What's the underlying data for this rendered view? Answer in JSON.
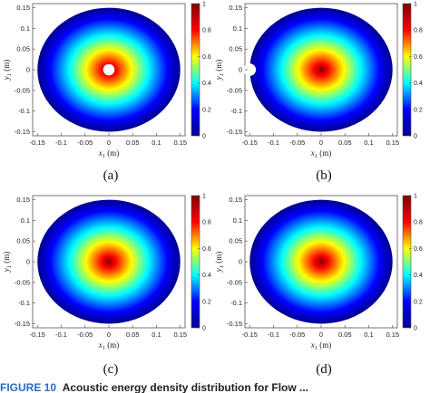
{
  "chart_data": [
    {
      "type": "heatmap",
      "panel_label": "(a)",
      "xlabel": "x",
      "xlabel_sub": "1",
      "xlabel_unit": "(m)",
      "ylabel": "y",
      "ylabel_sub": "1",
      "ylabel_unit": "(m)",
      "xlim": [
        -0.16,
        0.16
      ],
      "ylim": [
        -0.16,
        0.16
      ],
      "x_ticks": [
        "-0.15",
        "-0.1",
        "-0.05",
        "0",
        "0.05",
        "0.1",
        "0.15"
      ],
      "y_ticks": [
        "0.15",
        "0.1",
        "0.05",
        "0",
        "-0.05",
        "-0.1",
        "-0.15"
      ],
      "domain_radius": 0.15,
      "peak_center": [
        0,
        0
      ],
      "hole": {
        "center": [
          0,
          0
        ],
        "radius": 0.012
      },
      "colorbar_ticks": [
        "1",
        "0.8",
        "0.6",
        "0.4",
        "0.2",
        "0"
      ],
      "colorbar_range": [
        0,
        1
      ]
    },
    {
      "type": "heatmap",
      "panel_label": "(b)",
      "xlabel": "x",
      "xlabel_sub": "1",
      "xlabel_unit": "(m)",
      "ylabel": "y",
      "ylabel_sub": "1",
      "ylabel_unit": "(m)",
      "xlim": [
        -0.16,
        0.16
      ],
      "ylim": [
        -0.16,
        0.16
      ],
      "x_ticks": [
        "-0.15",
        "-0.1",
        "-0.05",
        "0",
        "0.05",
        "0.1",
        "0.15"
      ],
      "y_ticks": [
        "0.15",
        "0.1",
        "0.05",
        "0",
        "-0.05",
        "-0.1",
        "-0.15"
      ],
      "domain_radius": 0.15,
      "peak_center": [
        0,
        0
      ],
      "hole": {
        "center": [
          -0.15,
          0
        ],
        "radius": 0.013
      },
      "colorbar_ticks": [
        "1",
        "0.8",
        "0.6",
        "0.4",
        "0.2",
        "0"
      ],
      "colorbar_range": [
        0,
        1
      ]
    },
    {
      "type": "heatmap",
      "panel_label": "(c)",
      "xlabel": "x",
      "xlabel_sub": "1",
      "xlabel_unit": "(m)",
      "ylabel": "y",
      "ylabel_sub": "1",
      "ylabel_unit": "(m)",
      "xlim": [
        -0.16,
        0.16
      ],
      "ylim": [
        -0.16,
        0.16
      ],
      "x_ticks": [
        "-0.15",
        "-0.1",
        "-0.05",
        "0",
        "0.05",
        "0.1",
        "0.15"
      ],
      "y_ticks": [
        "0.15",
        "0.1",
        "0.05",
        "0",
        "-0.05",
        "-0.1",
        "-0.15"
      ],
      "domain_radius": 0.15,
      "peak_center": [
        0,
        0
      ],
      "hole": null,
      "colorbar_ticks": [
        "1",
        "0.8",
        "0.6",
        "0.4",
        "0.2",
        "0"
      ],
      "colorbar_range": [
        0,
        1
      ]
    },
    {
      "type": "heatmap",
      "panel_label": "(d)",
      "xlabel": "x",
      "xlabel_sub": "1",
      "xlabel_unit": "(m)",
      "ylabel": "y",
      "ylabel_sub": "1",
      "ylabel_unit": "(m)",
      "xlim": [
        -0.16,
        0.16
      ],
      "ylim": [
        -0.16,
        0.16
      ],
      "x_ticks": [
        "-0.15",
        "-0.1",
        "-0.05",
        "0",
        "0.05",
        "0.1",
        "0.15"
      ],
      "y_ticks": [
        "0.15",
        "0.1",
        "0.05",
        "0",
        "-0.05",
        "-0.1",
        "-0.15"
      ],
      "domain_radius": 0.15,
      "peak_center": [
        0,
        0
      ],
      "hole": null,
      "colorbar_ticks": [
        "1",
        "0.8",
        "0.6",
        "0.4",
        "0.2",
        "0"
      ],
      "colorbar_range": [
        0,
        1
      ]
    }
  ],
  "colormap": [
    "#00008f",
    "#0000ff",
    "#00ffff",
    "#ffff00",
    "#ff0000",
    "#800000"
  ],
  "caption": {
    "figure_number": "FIGURE 10",
    "text": "Acoustic energy density distribution for Flow ..."
  }
}
